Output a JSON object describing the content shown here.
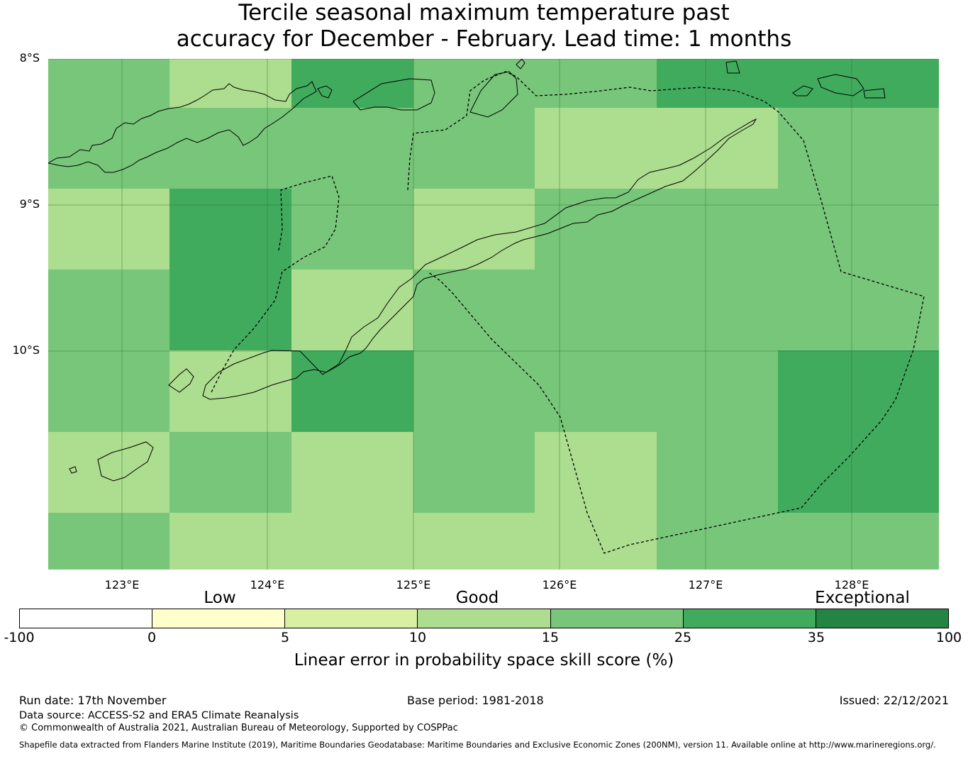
{
  "title": {
    "line1": "Tercile seasonal maximum temperature past",
    "line2": "accuracy for December - February. Lead time: 1 months"
  },
  "map": {
    "lat_labels": [
      "8°S",
      "9°S",
      "10°S"
    ],
    "lon_labels": [
      "123°E",
      "124°E",
      "125°E",
      "126°E",
      "127°E",
      "128°E"
    ],
    "grid_category_rows": [
      [
        4,
        3,
        5,
        4,
        4,
        5,
        5
      ],
      [
        4,
        4,
        4,
        4,
        3,
        3,
        4
      ],
      [
        3,
        5,
        4,
        3,
        4,
        4,
        4
      ],
      [
        4,
        5,
        3,
        4,
        4,
        4,
        4
      ],
      [
        4,
        3,
        5,
        4,
        4,
        4,
        5
      ],
      [
        3,
        4,
        3,
        4,
        3,
        4,
        5
      ],
      [
        4,
        3,
        3,
        3,
        3,
        4,
        4
      ]
    ],
    "colors": {
      "land_outline": "#000000",
      "eez_boundary": "#000000",
      "gridline": "#2f6b3a"
    }
  },
  "colorbar": {
    "categories": [
      "Low",
      "Good",
      "Exceptional"
    ],
    "ticks": [
      "-100",
      "0",
      "5",
      "10",
      "15",
      "25",
      "35",
      "100"
    ],
    "colors": [
      "#ffffff",
      "#ffffcc",
      "#d9f0a3",
      "#addd8e",
      "#78c679",
      "#41ab5d",
      "#238443"
    ],
    "label": "Linear error in probability space skill score (%)"
  },
  "footer": {
    "run_date": "Run date: 17th November",
    "base_period": "Base period: 1981-2018",
    "issued": "Issued: 22/12/2021",
    "data_source": "Data source: ACCESS-S2 and ERA5 Climate Reanalysis",
    "copyright": "© Commonwealth of Australia 2021, Australian Bureau of Meteorology, Supported by COSPPac",
    "shapefile": "Shapefile data extracted from Flanders Marine Institute (2019), Maritime Boundaries Geodatabase: Maritime Boundaries and Exclusive Economic Zones (200NM), version 11. Available online at http://www.marineregions.org/."
  }
}
